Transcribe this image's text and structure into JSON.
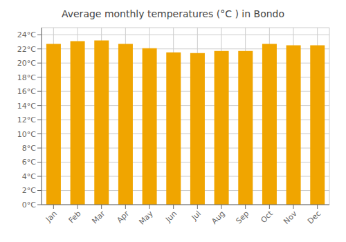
{
  "chart_data": {
    "type": "bar",
    "title": "Average monthly temperatures (°C ) in Bondo",
    "categories": [
      "Jan",
      "Feb",
      "Mar",
      "Apr",
      "May",
      "Jun",
      "Jul",
      "Aug",
      "Sep",
      "Oct",
      "Nov",
      "Dec"
    ],
    "values": [
      22.7,
      23.1,
      23.2,
      22.7,
      22.1,
      21.5,
      21.4,
      21.7,
      21.7,
      22.7,
      22.5,
      22.5
    ],
    "color": "#F0A500",
    "ylim": [
      0,
      25
    ],
    "yticks": [
      {
        "value": 0,
        "label": "0°C"
      },
      {
        "value": 2,
        "label": "2°C"
      },
      {
        "value": 4,
        "label": "4°C"
      },
      {
        "value": 6,
        "label": "6°C"
      },
      {
        "value": 8,
        "label": "8°C"
      },
      {
        "value": 10,
        "label": "10°C"
      },
      {
        "value": 12,
        "label": "12°C"
      },
      {
        "value": 14,
        "label": "14°C"
      },
      {
        "value": 16,
        "label": "16°C"
      },
      {
        "value": 18,
        "label": "18°C"
      },
      {
        "value": 20,
        "label": "20°C"
      },
      {
        "value": 22,
        "label": "22°C"
      },
      {
        "value": 24,
        "label": "24°C"
      }
    ],
    "grid": true
  }
}
